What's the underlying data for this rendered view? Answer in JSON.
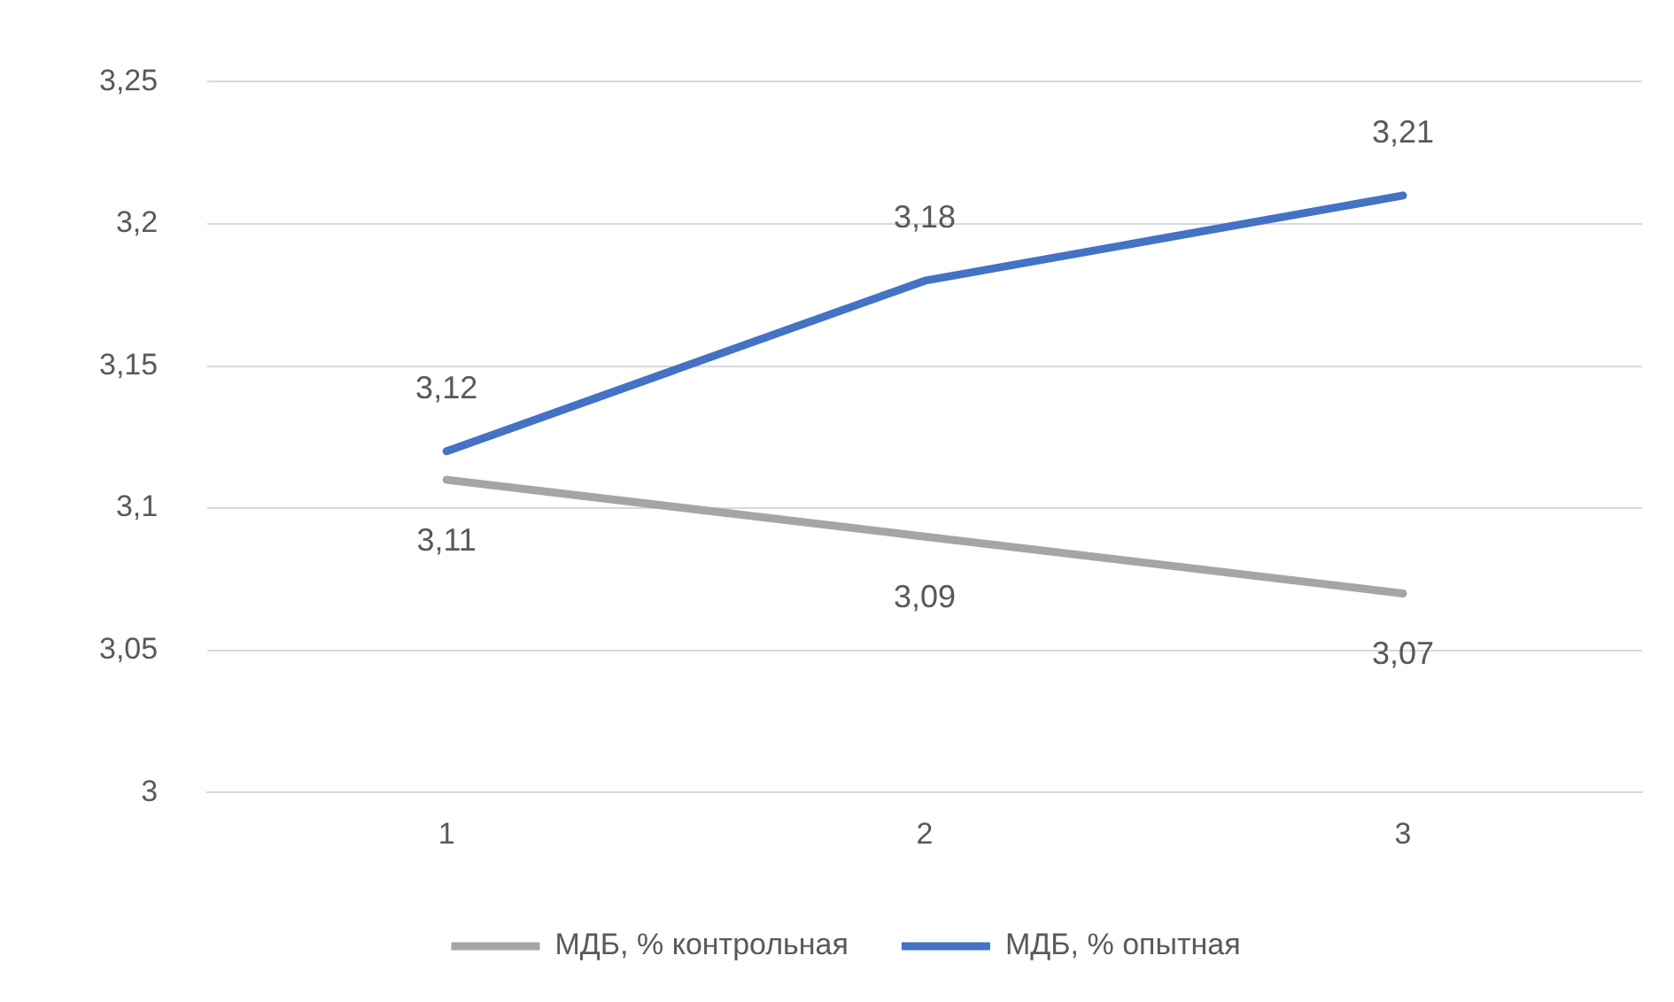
{
  "chart_data": {
    "type": "line",
    "categories": [
      "1",
      "2",
      "3"
    ],
    "series": [
      {
        "name": "МДБ, % контрольная",
        "color": "#a5a5a5",
        "values": [
          3.11,
          3.09,
          3.07
        ],
        "value_labels": [
          "3,11",
          "3,09",
          "3,07"
        ]
      },
      {
        "name": "МДБ, % опытная",
        "color": "#4472c4",
        "values": [
          3.12,
          3.18,
          3.21
        ],
        "value_labels": [
          "3,12",
          "3,18",
          "3,21"
        ]
      }
    ],
    "ylim": [
      3,
      3.25
    ],
    "yticks": [
      {
        "value": 3,
        "label": "3"
      },
      {
        "value": 3.05,
        "label": "3,05"
      },
      {
        "value": 3.1,
        "label": "3,1"
      },
      {
        "value": 3.15,
        "label": "3,15"
      },
      {
        "value": 3.2,
        "label": "3,2"
      },
      {
        "value": 3.25,
        "label": "3,25"
      }
    ],
    "grid": "y",
    "legend": "bottom",
    "marker": "none",
    "line_style": "solid"
  }
}
